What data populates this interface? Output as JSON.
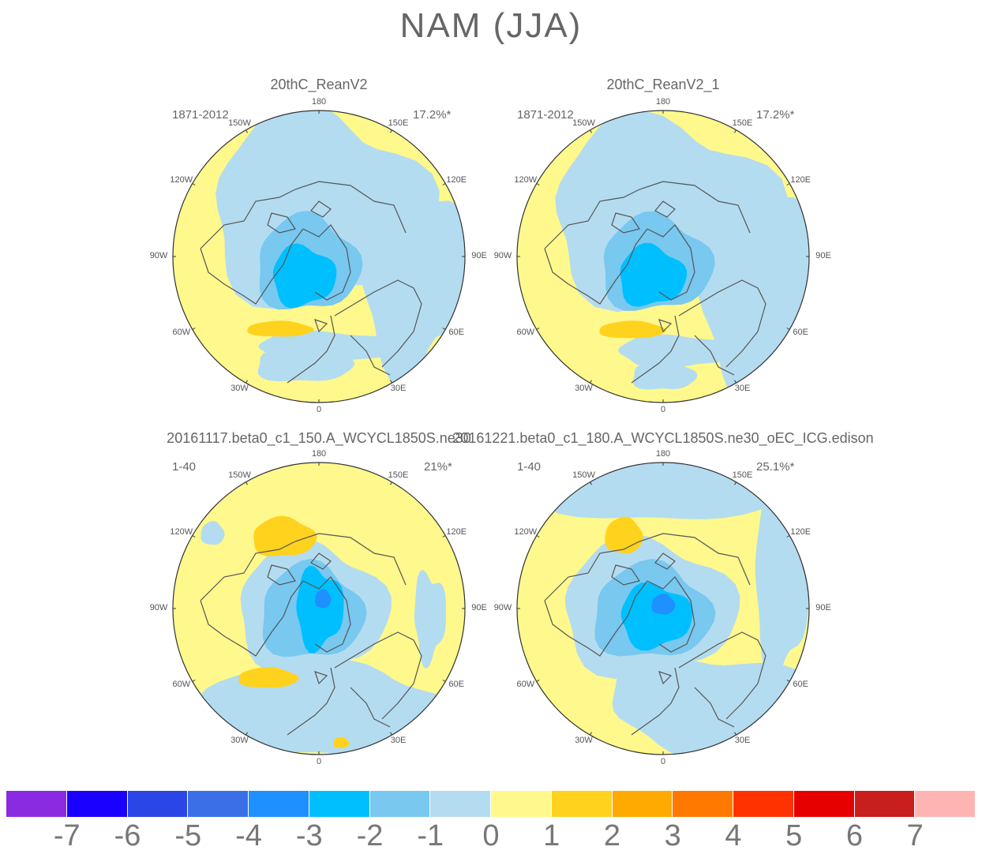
{
  "figure": {
    "title": "NAM (JJA)"
  },
  "panels": [
    {
      "title": "20thC_ReanV2",
      "period": "1871-2012",
      "variance": "17.2%*"
    },
    {
      "title": "20thC_ReanV2_1",
      "period": "1871-2012",
      "variance": "17.2%*"
    },
    {
      "title": "20161117.beta0_c1_150.A_WCYCL1850S.ne30",
      "period": "1-40",
      "variance": "21%*"
    },
    {
      "title": "20161221.beta0_c1_180.A_WCYCL1850S.ne30_oEC_ICG.edison",
      "period": "1-40",
      "variance": "25.1%*"
    }
  ],
  "longitude_labels": [
    "180",
    "150E",
    "120E",
    "90E",
    "60E",
    "30E",
    "0",
    "30W",
    "60W",
    "90W",
    "120W",
    "150W"
  ],
  "colorbar": {
    "labels": [
      "-7",
      "-6",
      "-5",
      "-4",
      "-3",
      "-2",
      "-1",
      "0",
      "1",
      "2",
      "3",
      "4",
      "5",
      "6",
      "7"
    ],
    "colors": [
      "#8a2be2",
      "#1a00ff",
      "#2b46e6",
      "#3a6fe8",
      "#1e90ff",
      "#00bfff",
      "#78c8f0",
      "#b4dcf0",
      "#fff88c",
      "#ffd21e",
      "#ffaa00",
      "#ff7800",
      "#ff3200",
      "#e60000",
      "#c81e1e",
      "#ffb4b4"
    ]
  },
  "chart_data": {
    "type": "heatmap",
    "projection": "north polar stereographic",
    "field": "NAM (JJA) regression pattern",
    "levels": [
      -7,
      -6,
      -5,
      -4,
      -3,
      -2,
      -1,
      0,
      1,
      2,
      3,
      4,
      5,
      6,
      7
    ],
    "panels": [
      {
        "name": "20thC_ReanV2",
        "period": "1871-2012",
        "explained_variance": "17.2%*",
        "min_level": -4,
        "max_level": 2
      },
      {
        "name": "20thC_ReanV2_1",
        "period": "1871-2012",
        "explained_variance": "17.2%*",
        "min_level": -4,
        "max_level": 2
      },
      {
        "name": "20161117.beta0_c1_150.A_WCYCL1850S.ne30",
        "period": "1-40",
        "explained_variance": "21%*",
        "min_level": -5,
        "max_level": 2
      },
      {
        "name": "20161221.beta0_c1_180.A_WCYCL1850S.ne30_oEC_ICG.edison",
        "period": "1-40",
        "explained_variance": "25.1%*",
        "min_level": -5,
        "max_level": 2
      }
    ]
  }
}
